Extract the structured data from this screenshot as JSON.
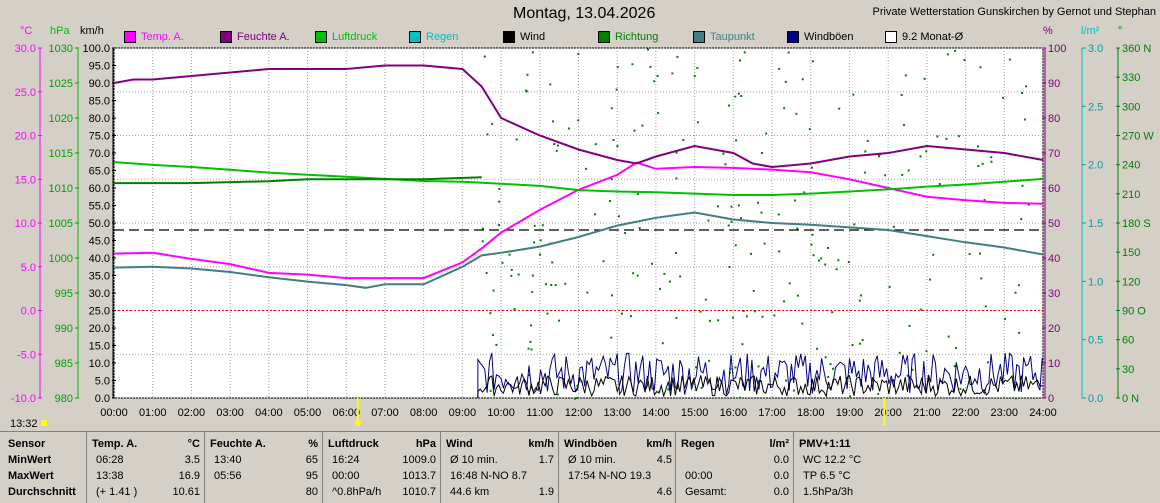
{
  "header": {
    "title": "Montag, 13.04.2026",
    "station": "Private Wetterstation Gunskirchen by Gernot und Stephan",
    "time": "13:32"
  },
  "units": [
    "°C",
    "hPa",
    "km/h",
    "%",
    "l/m²",
    "°"
  ],
  "colors": {
    "temp": "#ff00ff",
    "humidity": "#800080",
    "pressure": "#00c000",
    "rain": "#00c0c0",
    "wind": "#000000",
    "direction": "#008000",
    "dewpoint": "#408080",
    "gust": "#000080",
    "avg": "#ffffff",
    "background": "#d4d0c8",
    "plot": "#ffffff"
  },
  "legend": [
    {
      "label": "Temp. A.",
      "color": "#ff00ff"
    },
    {
      "label": "Feuchte A.",
      "color": "#800080"
    },
    {
      "label": "Luftdruck",
      "color": "#00c000"
    },
    {
      "label": "Regen",
      "color": "#00c0c0"
    },
    {
      "label": "Wind",
      "color": "#000000"
    },
    {
      "label": "Richtung",
      "color": "#008000"
    },
    {
      "label": "Taupunkt",
      "color": "#408080"
    },
    {
      "label": "Windböen",
      "color": "#000080"
    },
    {
      "label": "9.2 Monat-Ø",
      "color": "#ffffff"
    }
  ],
  "chart_data": {
    "type": "line",
    "x_ticks": [
      "00:00",
      "01:00",
      "02:00",
      "03:00",
      "04:00",
      "05:00",
      "06:00",
      "07:00",
      "08:00",
      "09:00",
      "10:00",
      "11:00",
      "12:00",
      "13:00",
      "14:00",
      "15:00",
      "16:00",
      "17:00",
      "18:00",
      "19:00",
      "20:00",
      "21:00",
      "22:00",
      "23:00",
      "24:00"
    ],
    "axes": {
      "temp": {
        "range": [
          -10,
          30
        ],
        "ticks": [
          "30.0",
          "25.0",
          "20.0",
          "15.0",
          "10.0",
          "5.0",
          "0.0",
          "-5.0",
          "-10.0"
        ]
      },
      "pressure": {
        "range": [
          980,
          1030
        ],
        "ticks": [
          "1030",
          "1025",
          "1020",
          "1015",
          "1010",
          "1005",
          "1000",
          "995",
          "990",
          "985",
          "980"
        ]
      },
      "wind": {
        "range": [
          0,
          100
        ],
        "ticks": [
          "100.0",
          "95.0",
          "90.0",
          "85.0",
          "80.0",
          "75.0",
          "70.0",
          "65.0",
          "60.0",
          "55.0",
          "50.0",
          "45.0",
          "40.0",
          "35.0",
          "30.0",
          "25.0",
          "20.0",
          "15.0",
          "10.0",
          "5.0",
          "0.0"
        ]
      },
      "humidity": {
        "range": [
          0,
          100
        ],
        "ticks": [
          "100",
          "90",
          "80",
          "70",
          "60",
          "50",
          "40",
          "30",
          "20",
          "10",
          "0"
        ]
      },
      "rain": {
        "range": [
          0,
          3
        ],
        "ticks": [
          "3.0",
          "2.5",
          "2.0",
          "1.5",
          "1.0",
          "0.5",
          "0.0"
        ]
      },
      "direction": {
        "range": [
          0,
          360
        ],
        "ticks": [
          "360 N",
          "330",
          "300",
          "270 W",
          "240",
          "210",
          "180 S",
          "150",
          "120",
          "90 O",
          "60",
          "30",
          "0 N"
        ]
      }
    },
    "monthly_avg_temp": 9.2,
    "series": [
      {
        "name": "Temp. A.",
        "key": "temp",
        "axis": "temp",
        "x": [
          0,
          1,
          2,
          2.5,
          3,
          4,
          5,
          6,
          7,
          8,
          8.5,
          9,
          9.5,
          10,
          11,
          12,
          13,
          13.5,
          14,
          15,
          16,
          17,
          18,
          19,
          20,
          21,
          22,
          23,
          24
        ],
        "y": [
          6.5,
          6.6,
          5.9,
          5.6,
          5.3,
          4.3,
          4.1,
          3.7,
          3.7,
          3.7,
          4.6,
          5.5,
          7.1,
          8.9,
          11.5,
          13.8,
          15.5,
          16.9,
          16.2,
          16.4,
          16.3,
          16.1,
          15.8,
          15.0,
          14.0,
          13.0,
          12.6,
          12.3,
          12.2
        ]
      },
      {
        "name": "Feuchte A.",
        "key": "humidity",
        "axis": "humidity",
        "x": [
          0,
          0.5,
          1,
          2,
          3,
          4,
          5,
          6,
          7,
          8,
          9,
          9.5,
          10,
          11,
          12,
          13,
          13.5,
          14,
          15,
          16,
          16.5,
          17,
          18,
          19,
          20,
          21,
          22,
          23,
          24
        ],
        "y": [
          90,
          91,
          91,
          92,
          93,
          94,
          94,
          94,
          95,
          95,
          94,
          89,
          80,
          75,
          71,
          68,
          67,
          69,
          72,
          70,
          67,
          66,
          67,
          69,
          70,
          72,
          71,
          70,
          68
        ]
      },
      {
        "name": "Luftdruck",
        "key": "pressure",
        "axis": "pressure",
        "x": [
          0,
          1,
          2,
          3,
          4,
          5,
          6,
          7,
          8,
          9,
          10,
          11,
          12,
          13,
          14,
          15,
          16,
          17,
          18,
          19,
          20,
          21,
          22,
          23,
          24
        ],
        "y": [
          1013.7,
          1013.3,
          1013.0,
          1012.6,
          1012.2,
          1011.9,
          1011.6,
          1011.3,
          1011.0,
          1010.9,
          1010.6,
          1010.3,
          1009.7,
          1009.5,
          1009.4,
          1009.2,
          1009.0,
          1009.0,
          1009.2,
          1009.5,
          1009.8,
          1010.2,
          1010.5,
          1010.9,
          1011.3
        ]
      },
      {
        "name": "Taupunkt",
        "key": "dewpoint",
        "axis": "temp",
        "x": [
          0,
          1,
          2,
          3,
          4,
          5,
          6,
          6.5,
          7,
          8,
          9,
          9.5,
          10,
          11,
          12,
          13,
          14,
          15,
          16,
          17,
          18,
          19,
          20,
          21,
          22,
          23,
          24
        ],
        "y": [
          4.9,
          5.0,
          4.8,
          4.4,
          3.8,
          3.3,
          2.9,
          2.6,
          3.0,
          3.0,
          5.0,
          6.3,
          6.6,
          7.3,
          8.4,
          9.7,
          10.6,
          11.2,
          10.4,
          10.0,
          9.8,
          9.5,
          9.2,
          8.5,
          7.8,
          7.2,
          6.4
        ]
      },
      {
        "name": "Richtung",
        "key": "direction",
        "axis": "direction",
        "x": [
          0,
          2,
          4,
          5,
          6,
          7,
          8,
          9.5
        ],
        "y": [
          221,
          221,
          223,
          225,
          225,
          225,
          225,
          227
        ]
      }
    ]
  },
  "table": {
    "rows_label": [
      "Sensor",
      "MinWert",
      "MaxWert",
      "Durchschnitt"
    ],
    "columns": [
      {
        "title": "Temp. A.",
        "unit": "°C",
        "cells": [
          [
            "06:28",
            "3.5"
          ],
          [
            "13:38",
            "16.9"
          ],
          [
            "(+ 1.41 )",
            "10.61"
          ]
        ]
      },
      {
        "title": "Feuchte A.",
        "unit": "%",
        "cells": [
          [
            "13:40",
            "65"
          ],
          [
            "05:56",
            "95"
          ],
          [
            "",
            "80"
          ]
        ]
      },
      {
        "title": "Luftdruck",
        "unit": "hPa",
        "cells": [
          [
            "16:24",
            "1009.0"
          ],
          [
            "00:00",
            "1013.7"
          ],
          [
            "^0.8hPa/h",
            "1010.7"
          ]
        ]
      },
      {
        "title": "Wind",
        "unit": "km/h",
        "cells": [
          [
            "Ø 10 min.",
            "1.7"
          ],
          [
            "16:48   N-NO 8.7",
            ""
          ],
          [
            "44.6 km",
            "1.9"
          ]
        ]
      },
      {
        "title": "Windböen",
        "unit": "km/h",
        "cells": [
          [
            "Ø 10 min.",
            "4.5"
          ],
          [
            "17:54   N-NO 19.3",
            ""
          ],
          [
            "",
            "4.6"
          ]
        ]
      },
      {
        "title": "Regen",
        "unit": "l/m²",
        "cells": [
          [
            "",
            "0.0"
          ],
          [
            "00:00",
            "0.0"
          ],
          [
            "Gesamt:",
            "0.0"
          ]
        ]
      },
      {
        "title": "PMV+1:11",
        "unit": "",
        "cells": [
          [
            "WC 12.2 °C",
            ""
          ],
          [
            "TP 6.5 °C",
            ""
          ],
          [
            "1.5hPa/3h",
            ""
          ]
        ]
      }
    ]
  }
}
